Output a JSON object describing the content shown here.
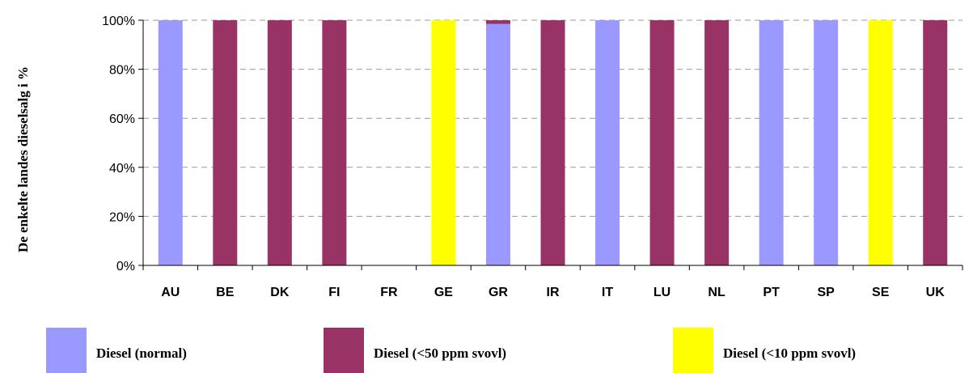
{
  "chart_data": {
    "type": "bar",
    "stacked": true,
    "ylabel": "De enkelte landes dieselsalg i %",
    "xlabel": "",
    "title": "",
    "ylim": [
      0,
      100
    ],
    "yticks": [
      "0%",
      "20%",
      "40%",
      "60%",
      "80%",
      "100%"
    ],
    "grid": "horizontal dashed",
    "legend_position": "bottom",
    "categories": [
      "AU",
      "BE",
      "DK",
      "FI",
      "FR",
      "GE",
      "GR",
      "IR",
      "IT",
      "LU",
      "NL",
      "PT",
      "SP",
      "SE",
      "UK"
    ],
    "series": [
      {
        "name": "Diesel (normal)",
        "color": "#9999ff",
        "values": [
          100,
          0,
          0,
          0,
          0,
          0,
          98.5,
          0,
          100,
          0,
          0,
          100,
          100,
          0,
          0
        ]
      },
      {
        "name": "Diesel (<50 ppm svovl)",
        "color": "#993366",
        "values": [
          0,
          100,
          100,
          100,
          0,
          0,
          1.5,
          100,
          0,
          100,
          100,
          0,
          0,
          0,
          100
        ]
      },
      {
        "name": "Diesel (<10 ppm svovl)",
        "color": "#ffff00",
        "values": [
          0,
          0,
          0,
          0,
          0,
          100,
          0,
          0,
          0,
          0,
          0,
          0,
          0,
          100,
          0
        ]
      }
    ]
  }
}
